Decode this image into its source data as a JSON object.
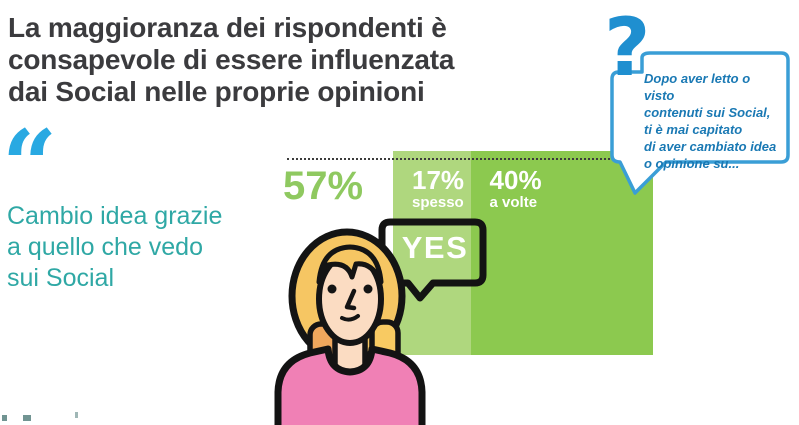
{
  "title": {
    "lines": [
      "La maggioranza dei rispondenti è",
      "consapevole di essere influenzata",
      "dai Social nelle proprie opinioni"
    ]
  },
  "quote": {
    "mark": "“",
    "lines": [
      "Cambio idea grazie",
      "a quello che vedo",
      "sui Social"
    ]
  },
  "question_bubble": {
    "icon": "?",
    "lines": [
      "Dopo aver letto o visto",
      "contenuti sui Social,",
      "ti è mai capitato",
      "di aver cambiato idea",
      "o opinione su..."
    ]
  },
  "stats": {
    "total": "57%",
    "segments": [
      {
        "value": "17%",
        "label": "spesso",
        "color": "#AFD77E"
      },
      {
        "value": "40%",
        "label": "a volte",
        "color": "#8CC94F"
      }
    ]
  },
  "yes_bubble": {
    "label": "YES"
  },
  "colors": {
    "title_text": "#3B3B3E",
    "quote_mark_blue": "#29A9E2",
    "quote_text_teal": "#2FA8A5",
    "total_pct_green": "#8FC960",
    "bar_light_green": "#AFD77E",
    "bar_dark_green": "#8CC94F",
    "question_mark_blue": "#1F8FD0",
    "bubble_border_blue": "#3A9ED6",
    "bubble_text_blue": "#1A79B4",
    "outline_black": "#141414",
    "hair_gold": "#F6C663",
    "skin": "#FBDCC2",
    "shirt_pink": "#F080B5"
  },
  "chart_data": {
    "type": "bar",
    "orientation": "horizontal",
    "title": "La maggioranza dei rispondenti è consapevole di essere influenzata dai Social nelle proprie opinioni",
    "categories": [
      "spesso",
      "a volte"
    ],
    "values": [
      17,
      40
    ],
    "total_pct": 57,
    "units": "%",
    "xlabel": "",
    "ylabel": "",
    "legend": false,
    "grid": false,
    "annotations": [
      "57%",
      "YES",
      "Cambio idea grazie a quello che vedo sui Social",
      "Dopo aver letto o visto contenuti sui Social, ti è mai capitato di aver cambiato idea o opinione su..."
    ]
  }
}
